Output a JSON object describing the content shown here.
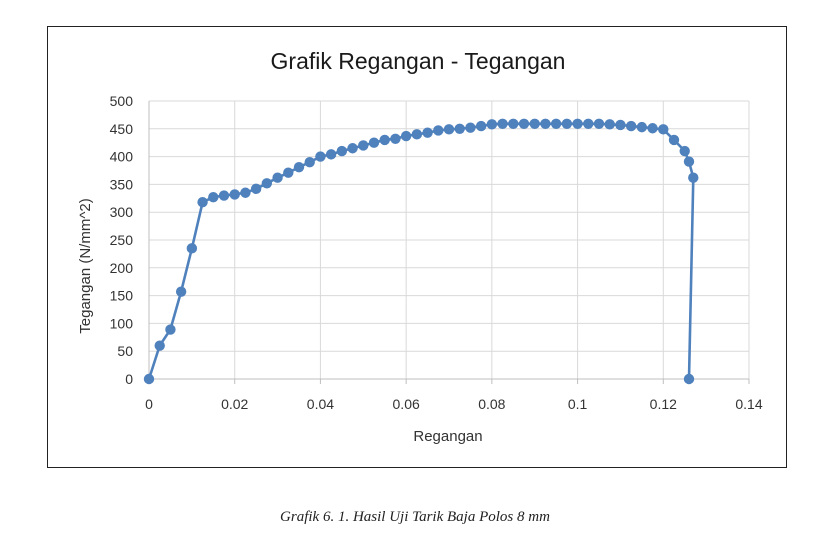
{
  "chart_data": {
    "type": "line",
    "title": "Grafik Regangan - Tegangan",
    "xlabel": "Regangan",
    "ylabel": "Tegangan (N/mm^2)",
    "xlim": [
      0,
      0.14
    ],
    "ylim": [
      0,
      500
    ],
    "x_ticks": [
      0,
      0.02,
      0.04,
      0.06,
      0.08,
      0.1,
      0.12,
      0.14
    ],
    "x_tick_labels": [
      "0",
      "0.02",
      "0.04",
      "0.06",
      "0.08",
      "0.1",
      "0.12",
      "0.14"
    ],
    "y_ticks": [
      0,
      50,
      100,
      150,
      200,
      250,
      300,
      350,
      400,
      450,
      500
    ],
    "y_tick_labels": [
      "0",
      "50",
      "100",
      "150",
      "200",
      "250",
      "300",
      "350",
      "400",
      "450",
      "500"
    ],
    "grid": true,
    "legend": "none",
    "series_color": "#4f81bd",
    "series": [
      {
        "points": [
          [
            0.0,
            0
          ],
          [
            0.0025,
            60
          ],
          [
            0.005,
            89
          ],
          [
            0.0075,
            157
          ],
          [
            0.01,
            235
          ],
          [
            0.0125,
            318
          ],
          [
            0.015,
            327
          ],
          [
            0.0175,
            330
          ],
          [
            0.02,
            332
          ],
          [
            0.0225,
            335
          ],
          [
            0.025,
            342
          ],
          [
            0.0275,
            352
          ],
          [
            0.03,
            362
          ],
          [
            0.0325,
            371
          ],
          [
            0.035,
            381
          ],
          [
            0.0375,
            390
          ],
          [
            0.04,
            400
          ],
          [
            0.0425,
            404
          ],
          [
            0.045,
            410
          ],
          [
            0.0475,
            415
          ],
          [
            0.05,
            420
          ],
          [
            0.0525,
            425
          ],
          [
            0.055,
            430
          ],
          [
            0.0575,
            432
          ],
          [
            0.06,
            437
          ],
          [
            0.0625,
            440
          ],
          [
            0.065,
            443
          ],
          [
            0.0675,
            447
          ],
          [
            0.07,
            449
          ],
          [
            0.0725,
            450
          ],
          [
            0.075,
            452
          ],
          [
            0.0775,
            455
          ],
          [
            0.08,
            458
          ],
          [
            0.0825,
            459
          ],
          [
            0.085,
            459
          ],
          [
            0.0875,
            459
          ],
          [
            0.09,
            459
          ],
          [
            0.0925,
            459
          ],
          [
            0.095,
            459
          ],
          [
            0.0975,
            459
          ],
          [
            0.1,
            459
          ],
          [
            0.1025,
            459
          ],
          [
            0.105,
            459
          ],
          [
            0.1075,
            458
          ],
          [
            0.11,
            457
          ],
          [
            0.1125,
            455
          ],
          [
            0.115,
            453
          ],
          [
            0.1175,
            451
          ],
          [
            0.12,
            449
          ],
          [
            0.1225,
            430
          ],
          [
            0.125,
            410
          ],
          [
            0.126,
            391
          ],
          [
            0.127,
            362
          ],
          [
            0.126,
            0
          ]
        ]
      }
    ]
  },
  "caption": "Grafik 6. 1. Hasil Uji Tarik Baja Polos 8 mm"
}
